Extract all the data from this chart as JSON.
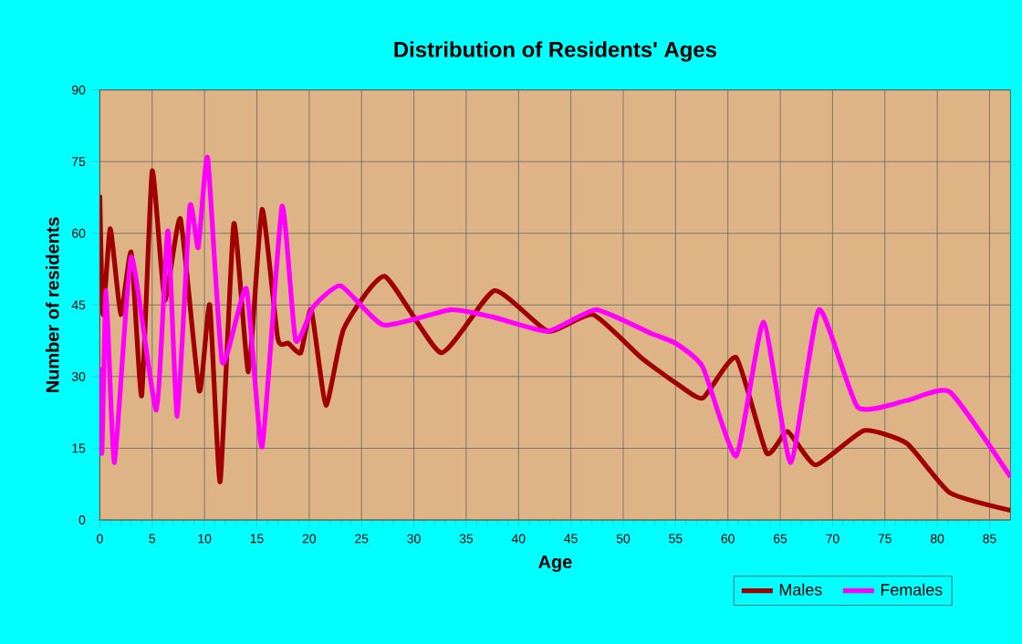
{
  "chart_data": {
    "type": "line",
    "title": "Distribution of Residents' Ages",
    "xlabel": "Age",
    "ylabel": "Number of residents",
    "xlim": [
      0,
      87
    ],
    "ylim": [
      0,
      90
    ],
    "xticks": [
      0,
      5,
      10,
      15,
      20,
      25,
      30,
      35,
      40,
      45,
      50,
      55,
      60,
      65,
      70,
      75,
      80,
      85
    ],
    "yticks": [
      0,
      15,
      30,
      45,
      60,
      75,
      90
    ],
    "grid": true,
    "legend": "bottom right",
    "series": [
      {
        "name": "Males",
        "color": "#a00000",
        "x": [
          0,
          0.3,
          1,
          2,
          3,
          4,
          5,
          6.2,
          7.7,
          9.5,
          10.5,
          11.5,
          12.8,
          14.2,
          15.5,
          17,
          18,
          19.2,
          20.2,
          21.6,
          23.3,
          27.2,
          32.6,
          37.7,
          42.8,
          47.1,
          51.7,
          55,
          57.6,
          60.8,
          63.7,
          65.7,
          68.4,
          73,
          77.1,
          81.2,
          87
        ],
        "values": [
          68,
          43,
          61,
          43,
          56,
          26,
          73,
          46,
          63,
          27,
          45,
          8,
          62,
          31,
          65,
          38,
          37,
          35,
          44,
          24,
          40,
          51,
          35,
          48,
          39.5,
          43,
          34,
          28.7,
          25.5,
          34,
          14,
          18.5,
          11.5,
          18.7,
          16,
          5.7,
          2
        ]
      },
      {
        "name": "Females",
        "color": "#ff00ff",
        "x": [
          0,
          0.2,
          0.6,
          1.4,
          3,
          5.4,
          6.5,
          7.4,
          8.6,
          9.4,
          10.3,
          11.7,
          14,
          15.5,
          17.4,
          18.7,
          20.4,
          23,
          27.1,
          33.5,
          37.5,
          42.8,
          47.4,
          52.7,
          55,
          57.6,
          60.8,
          63.4,
          66,
          68.7,
          72.4,
          77.1,
          81.2,
          87
        ],
        "values": [
          32,
          14,
          48,
          12,
          55,
          23,
          60.5,
          21.7,
          65.6,
          57,
          75.8,
          33,
          48.4,
          15.3,
          65.6,
          37.6,
          44.6,
          49,
          40.8,
          44,
          42.5,
          39.5,
          44,
          39,
          37,
          32,
          13.4,
          41.4,
          12,
          44,
          23.6,
          25,
          26.8,
          9
        ]
      }
    ]
  }
}
